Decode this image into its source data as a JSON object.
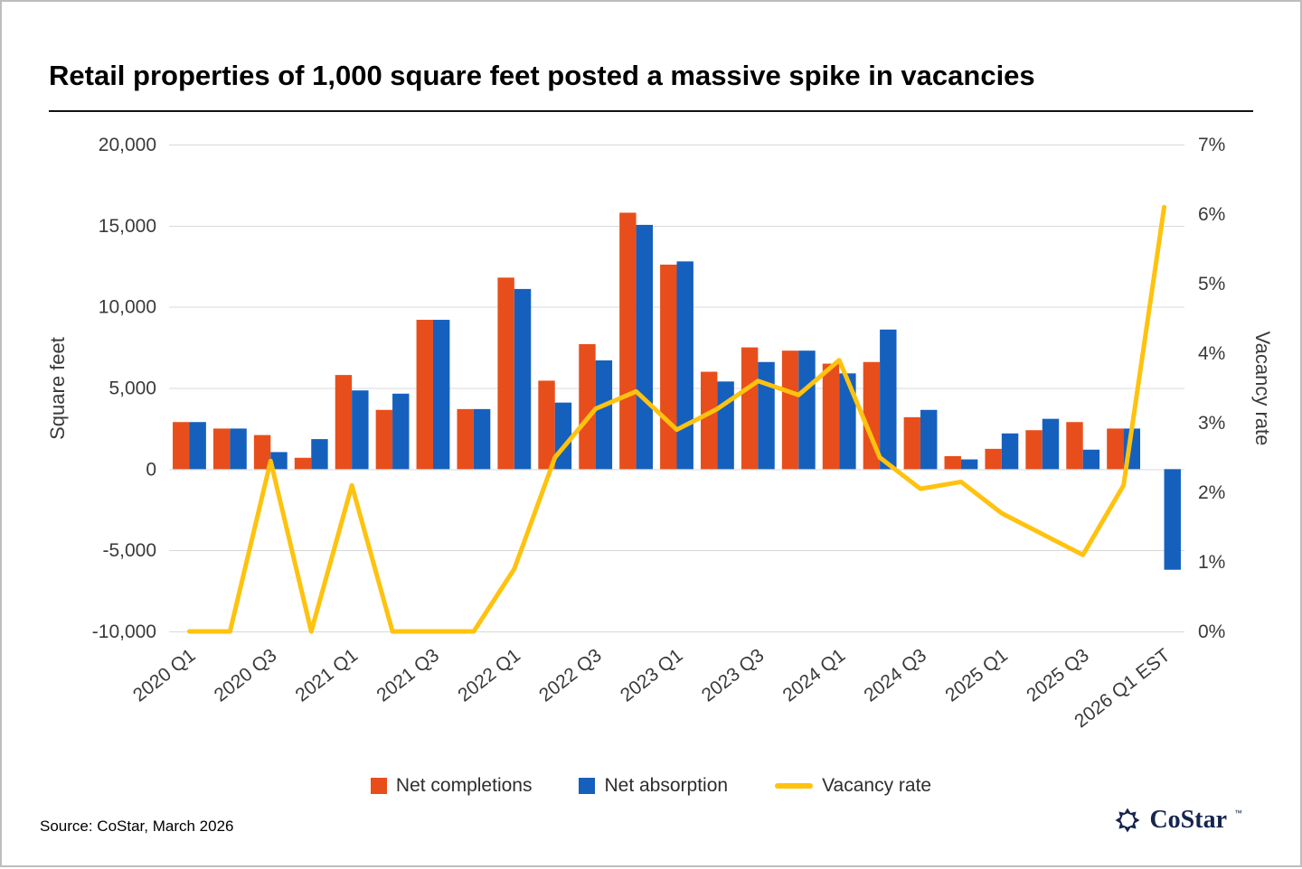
{
  "title": "Retail properties of 1,000 square feet posted a massive spike in vacancies",
  "source": "Source: CoStar, March 2026",
  "logo_text": "CoStar",
  "logo_tm": "™",
  "legend": [
    {
      "label": "Net completions",
      "color": "#E84E1B",
      "marker": "square"
    },
    {
      "label": "Net absorption",
      "color": "#1560BD",
      "marker": "square"
    },
    {
      "label": "Vacancy rate",
      "color": "#FFC20E",
      "marker": "line"
    }
  ],
  "chart_data": {
    "type": "bar",
    "subtype": "grouped-bars-with-line",
    "title": "Retail properties of 1,000 square feet posted a massive spike in vacancies",
    "grid": true,
    "legend_position": "bottom",
    "categories": [
      "2020 Q1",
      "2020 Q2",
      "2020 Q3",
      "2020 Q4",
      "2021 Q1",
      "2021 Q2",
      "2021 Q3",
      "2021 Q4",
      "2022 Q1",
      "2022 Q2",
      "2022 Q3",
      "2022 Q4",
      "2023 Q1",
      "2023 Q2",
      "2023 Q3",
      "2023 Q4",
      "2024 Q1",
      "2024 Q2",
      "2024 Q3",
      "2024 Q4",
      "2025 Q1",
      "2025 Q2",
      "2025 Q3",
      "2025 Q4",
      "2026 Q1 EST"
    ],
    "x_tick_labels": [
      "2020 Q1",
      "2020 Q3",
      "2021 Q1",
      "2021 Q3",
      "2022 Q1",
      "2022 Q3",
      "2023 Q1",
      "2023 Q3",
      "2024 Q1",
      "2024 Q3",
      "2025 Q1",
      "2025 Q3",
      "2026 Q1 EST"
    ],
    "x_tick_every": 2,
    "series": [
      {
        "name": "Net completions",
        "type": "bar",
        "axis": "left",
        "color": "#E84E1B",
        "values": [
          2900,
          2500,
          2100,
          700,
          5800,
          3650,
          9200,
          3700,
          11800,
          5450,
          7700,
          15800,
          12600,
          6000,
          7500,
          7300,
          6500,
          6600,
          3200,
          800,
          1250,
          2400,
          2900,
          2500,
          0
        ]
      },
      {
        "name": "Net absorption",
        "type": "bar",
        "axis": "left",
        "color": "#1560BD",
        "values": [
          2900,
          2500,
          1050,
          1850,
          4850,
          4650,
          9200,
          3700,
          11100,
          4100,
          6700,
          15050,
          12800,
          5400,
          6600,
          7300,
          5900,
          8600,
          3650,
          600,
          2200,
          3100,
          1200,
          2500,
          -6200
        ]
      },
      {
        "name": "Vacancy rate",
        "type": "line",
        "axis": "right",
        "color": "#FFC20E",
        "values": [
          0,
          0,
          2.45,
          0,
          2.1,
          0,
          0,
          0,
          0.9,
          2.5,
          3.2,
          3.45,
          2.9,
          3.2,
          3.6,
          3.4,
          3.9,
          2.5,
          2.05,
          2.15,
          1.7,
          1.4,
          1.1,
          2.1,
          6.1
        ]
      }
    ],
    "left_axis": {
      "label": "Square feet",
      "min": -10000,
      "max": 20000,
      "ticks": [
        {
          "value": 20000,
          "label": "20,000"
        },
        {
          "value": 15000,
          "label": "15,000"
        },
        {
          "value": 10000,
          "label": "10,000"
        },
        {
          "value": 5000,
          "label": "5,000"
        },
        {
          "value": 0,
          "label": "0"
        },
        {
          "value": -5000,
          "label": "-5,000"
        },
        {
          "value": -10000,
          "label": "-10,000"
        }
      ]
    },
    "right_axis": {
      "label": "Vacancy rate",
      "min": 0,
      "max": 7,
      "ticks": [
        {
          "value": 7,
          "label": "7%"
        },
        {
          "value": 6,
          "label": "6%"
        },
        {
          "value": 5,
          "label": "5%"
        },
        {
          "value": 4,
          "label": "4%"
        },
        {
          "value": 3,
          "label": "3%"
        },
        {
          "value": 2,
          "label": "2%"
        },
        {
          "value": 1,
          "label": "1%"
        },
        {
          "value": 0,
          "label": "0%"
        }
      ]
    }
  }
}
